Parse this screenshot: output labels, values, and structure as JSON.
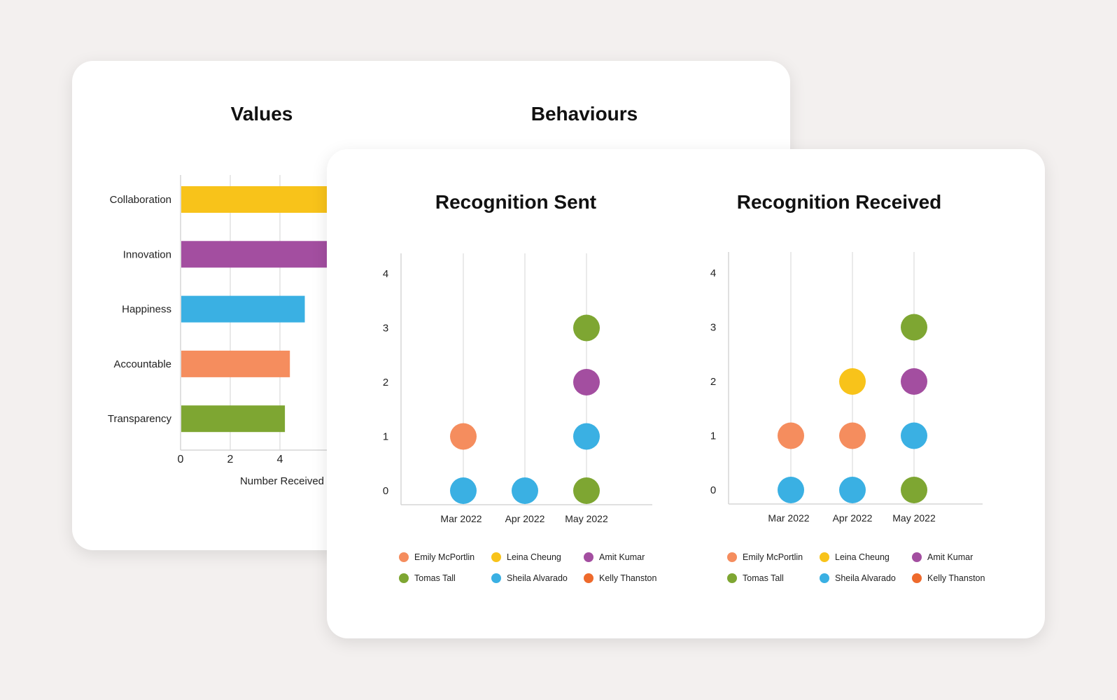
{
  "values_card": {
    "title": "Values",
    "behaviours_title": "Behaviours"
  },
  "recognition_card": {
    "sent_title": "Recognition Sent",
    "received_title": "Recognition Received"
  },
  "legend": [
    {
      "name": "Emily McPortlin",
      "color": "#f58d5e"
    },
    {
      "name": "Leina Cheung",
      "color": "#f8c31a"
    },
    {
      "name": "Amit Kumar",
      "color": "#a34ea0"
    },
    {
      "name": "Tomas Tall",
      "color": "#7ea632"
    },
    {
      "name": "Sheila Alvarado",
      "color": "#3ab0e3"
    },
    {
      "name": "Kelly Thanston",
      "color": "#ee6a2c"
    }
  ],
  "chart_data": [
    {
      "type": "bar",
      "orientation": "horizontal",
      "title": "Values",
      "categories": [
        "Collaboration",
        "Innovation",
        "Happiness",
        "Accountable",
        "Transparency"
      ],
      "values": [
        9,
        9,
        5,
        4.4,
        4.2
      ],
      "colors": [
        "#f8c31a",
        "#a34ea0",
        "#3ab0e3",
        "#f58d5e",
        "#7ea632"
      ],
      "xlabel": "Number Received",
      "xticks": [
        0,
        2,
        4
      ],
      "xlim": [
        0,
        9
      ],
      "grid": true
    },
    {
      "type": "scatter",
      "title": "Recognition Sent",
      "x": [
        "Mar 2022",
        "Apr 2022",
        "May 2022"
      ],
      "yticks": [
        0,
        1,
        2,
        3,
        4
      ],
      "ylim": [
        0,
        4
      ],
      "points": [
        {
          "x": "Mar 2022",
          "y": 0,
          "color": "#3ab0e3"
        },
        {
          "x": "Mar 2022",
          "y": 1,
          "color": "#f58d5e"
        },
        {
          "x": "Apr 2022",
          "y": 0,
          "color": "#3ab0e3"
        },
        {
          "x": "May 2022",
          "y": 0,
          "color": "#7ea632"
        },
        {
          "x": "May 2022",
          "y": 1,
          "color": "#3ab0e3"
        },
        {
          "x": "May 2022",
          "y": 2,
          "color": "#a34ea0"
        },
        {
          "x": "May 2022",
          "y": 3,
          "color": "#7ea632"
        }
      ],
      "legend_position": "bottom",
      "grid": "vertical"
    },
    {
      "type": "scatter",
      "title": "Recognition Received",
      "x": [
        "Mar 2022",
        "Apr 2022",
        "May 2022"
      ],
      "yticks": [
        0,
        1,
        2,
        3,
        4
      ],
      "ylim": [
        0,
        4
      ],
      "points": [
        {
          "x": "Mar 2022",
          "y": 0,
          "color": "#3ab0e3"
        },
        {
          "x": "Mar 2022",
          "y": 1,
          "color": "#f58d5e"
        },
        {
          "x": "Apr 2022",
          "y": 0,
          "color": "#3ab0e3"
        },
        {
          "x": "Apr 2022",
          "y": 1,
          "color": "#f58d5e"
        },
        {
          "x": "Apr 2022",
          "y": 2,
          "color": "#f8c31a"
        },
        {
          "x": "May 2022",
          "y": 0,
          "color": "#7ea632"
        },
        {
          "x": "May 2022",
          "y": 1,
          "color": "#3ab0e3"
        },
        {
          "x": "May 2022",
          "y": 2,
          "color": "#a34ea0"
        },
        {
          "x": "May 2022",
          "y": 3,
          "color": "#7ea632"
        }
      ],
      "legend_position": "bottom",
      "grid": "vertical"
    }
  ]
}
